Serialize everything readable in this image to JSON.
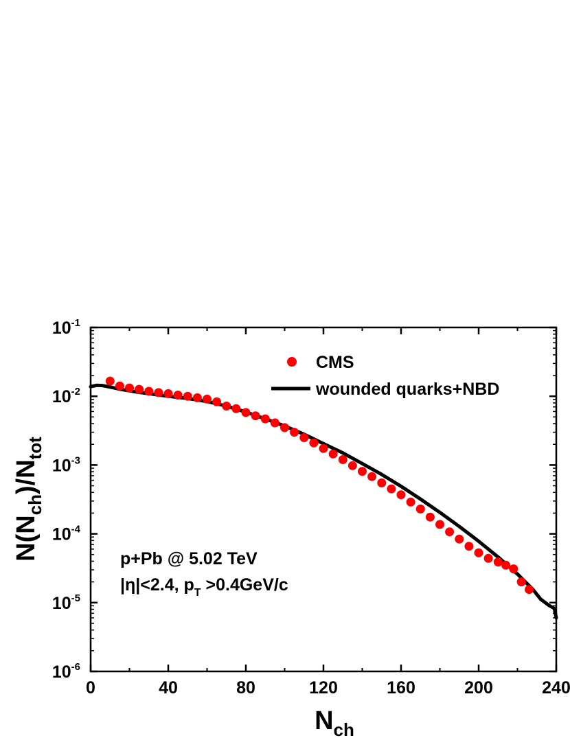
{
  "chart_data": {
    "type": "scatter",
    "xlabel": {
      "main": "N",
      "sub": "ch"
    },
    "ylabel": {
      "p1": "N(N",
      "p1_sub": "ch",
      "p2": ")/N",
      "p2_sub": "tot"
    },
    "xlim": [
      0,
      240
    ],
    "ylim": [
      1e-06,
      0.1
    ],
    "yscale": "log",
    "grid": false,
    "legend_position": "top-right",
    "x_ticks": [
      0,
      40,
      80,
      120,
      160,
      200,
      240
    ],
    "x_tick_labels": [
      "0",
      "40",
      "80",
      "120",
      "160",
      "200",
      "240"
    ],
    "y_ticks": [
      {
        "value": 1e-06,
        "base": "10",
        "exp": "-6"
      },
      {
        "value": 1e-05,
        "base": "10",
        "exp": "-5"
      },
      {
        "value": 0.0001,
        "base": "10",
        "exp": "-4"
      },
      {
        "value": 0.001,
        "base": "10",
        "exp": "-3"
      },
      {
        "value": 0.01,
        "base": "10",
        "exp": "-2"
      },
      {
        "value": 0.1,
        "base": "10",
        "exp": "-1"
      }
    ],
    "series": [
      {
        "name": "CMS",
        "kind": "points",
        "color": "#ff0000",
        "x": [
          10,
          15,
          20,
          25,
          30,
          35,
          40,
          45,
          50,
          55,
          60,
          65,
          70,
          75,
          80,
          85,
          90,
          95,
          100,
          105,
          110,
          115,
          120,
          125,
          130,
          135,
          140,
          145,
          150,
          155,
          160,
          165,
          170,
          175,
          180,
          185,
          190,
          195,
          200,
          205,
          210,
          214,
          218,
          222,
          226
        ],
        "y": [
          0.0166,
          0.0141,
          0.0132,
          0.0126,
          0.0118,
          0.0113,
          0.0109,
          0.0104,
          0.01,
          0.0095,
          0.0091,
          0.0083,
          0.0072,
          0.0066,
          0.0058,
          0.0052,
          0.0047,
          0.0041,
          0.0035,
          0.003,
          0.0025,
          0.0021,
          0.00174,
          0.00145,
          0.0012,
          0.00098,
          0.00081,
          0.00068,
          0.00055,
          0.00045,
          0.00037,
          0.00029,
          0.00023,
          0.000175,
          0.000137,
          0.000107,
          8.4e-05,
          6.6e-05,
          5.3e-05,
          4.4e-05,
          3.9e-05,
          3.5e-05,
          3.1e-05,
          2e-05,
          1.55e-05
        ]
      },
      {
        "name": "wounded quarks+NBD",
        "kind": "line",
        "color": "#000000",
        "x": [
          0,
          3,
          6,
          10,
          15,
          20,
          25,
          30,
          40,
          50,
          60,
          70,
          80,
          90,
          100,
          110,
          120,
          130,
          140,
          150,
          160,
          170,
          180,
          190,
          200,
          210,
          220,
          228,
          232,
          236,
          239,
          240
        ],
        "y": [
          0.0138,
          0.0144,
          0.0143,
          0.0136,
          0.0127,
          0.012,
          0.0114,
          0.0109,
          0.01,
          0.0093,
          0.0084,
          0.0072,
          0.0059,
          0.0047,
          0.0037,
          0.0028,
          0.00205,
          0.0015,
          0.00105,
          0.00073,
          0.00049,
          0.00032,
          0.000205,
          0.000128,
          7.8e-05,
          4.6e-05,
          2.6e-05,
          1.55e-05,
          1.12e-05,
          9.2e-06,
          8.2e-06,
          6e-06
        ]
      }
    ],
    "annotations": [
      {
        "parts": [
          {
            "text": "p+Pb @ 5.02 TeV"
          }
        ]
      },
      {
        "parts": [
          {
            "text": "|η|<2.4, p"
          },
          {
            "text": "T",
            "sub": true
          },
          {
            "text": " >0.4GeV/c"
          }
        ]
      }
    ]
  }
}
